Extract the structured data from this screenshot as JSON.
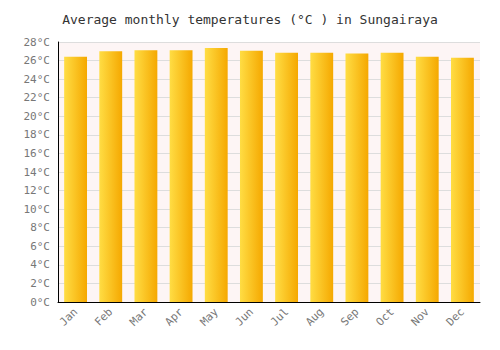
{
  "chart_data": {
    "type": "bar",
    "title": "Average monthly temperatures (°C ) in Sungairaya",
    "categories": [
      "Jan",
      "Feb",
      "Mar",
      "Apr",
      "May",
      "Jun",
      "Jul",
      "Aug",
      "Sep",
      "Oct",
      "Nov",
      "Dec"
    ],
    "values": [
      26.4,
      27.0,
      27.1,
      27.1,
      27.35,
      27.05,
      26.85,
      26.85,
      26.75,
      26.85,
      26.4,
      26.3
    ],
    "color": [
      "#FFDD44",
      "#F5A800"
    ],
    "ylim": [
      0,
      28
    ],
    "yticks": [
      {
        "value": 0,
        "label": "0°C"
      },
      {
        "value": 2,
        "label": "2°C"
      },
      {
        "value": 4,
        "label": "4°C"
      },
      {
        "value": 6,
        "label": "6°C"
      },
      {
        "value": 8,
        "label": "8°C"
      },
      {
        "value": 10,
        "label": "10°C"
      },
      {
        "value": 12,
        "label": "12°C"
      },
      {
        "value": 14,
        "label": "14°C"
      },
      {
        "value": 16,
        "label": "16°C"
      },
      {
        "value": 18,
        "label": "18°C"
      },
      {
        "value": 20,
        "label": "20°C"
      },
      {
        "value": 22,
        "label": "22°C"
      },
      {
        "value": 24,
        "label": "24°C"
      },
      {
        "value": 26,
        "label": "26°C"
      },
      {
        "value": 28,
        "label": "28°C"
      }
    ],
    "grid": true
  }
}
